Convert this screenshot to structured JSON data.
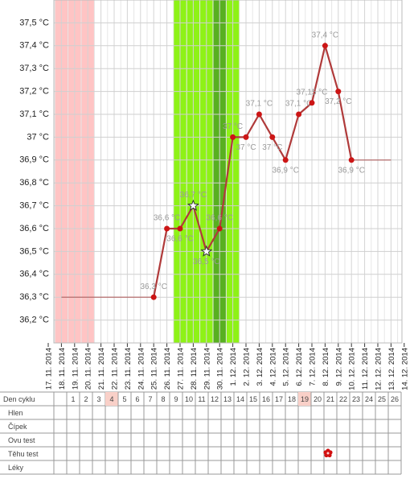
{
  "chart_data": {
    "type": "line",
    "categories": [
      "17. 11. 2014",
      "18. 11. 2014",
      "19. 11. 2014",
      "20. 11. 2014",
      "21. 11. 2014",
      "22. 11. 2014",
      "23. 11. 2014",
      "24. 11. 2014",
      "25. 11. 2014",
      "26. 11. 2014",
      "27. 11. 2014",
      "28. 11. 2014",
      "29. 11. 2014",
      "30. 11. 2014",
      "1. 12. 2014",
      "2. 12. 2014",
      "3. 12. 2014",
      "4. 12. 2014",
      "5. 12. 2014",
      "6. 12. 2014",
      "7. 12. 2014",
      "8. 12. 2014",
      "9. 12. 2014",
      "10. 12. 2014",
      "11. 12. 2014",
      "12. 12. 2014",
      "13. 12. 2014",
      "14. 12. 2014"
    ],
    "series": [
      {
        "color": "#b03a3a",
        "marker_color": "#cc1515",
        "values": [
          null,
          null,
          null,
          null,
          null,
          null,
          null,
          null,
          36.3,
          36.6,
          36.6,
          36.7,
          36.5,
          36.6,
          37.0,
          37.0,
          37.1,
          37.0,
          36.9,
          37.1,
          37.15,
          37.4,
          37.2,
          36.9,
          null,
          null,
          null,
          null
        ],
        "value_labels": [
          null,
          null,
          null,
          null,
          null,
          null,
          null,
          null,
          "36,3 °C",
          "36,6 °C",
          "36,6 °C",
          "36,7 °C",
          "36,5 °C",
          "36,6 °C",
          "37 °C",
          "37 °C",
          "37,1 °C",
          "37 °C",
          "36,9 °C",
          "37,1 °C",
          "37,15 °C",
          "37,4 °C",
          "37,2 °C",
          "36,9 °C",
          null,
          null,
          null,
          null
        ],
        "markers": [
          null,
          null,
          null,
          null,
          null,
          null,
          null,
          null,
          "circle",
          "circle",
          "circle",
          "star",
          "star",
          "circle",
          "circle",
          "circle",
          "circle",
          "circle",
          "circle",
          "circle",
          "circle",
          "circle",
          "circle",
          "circle",
          null,
          null,
          null,
          null
        ]
      },
      {
        "color": "#b06060",
        "values": [
          null,
          36.3,
          36.3,
          36.3,
          36.3,
          36.3,
          36.3,
          36.3,
          36.3,
          null,
          null,
          null,
          null,
          null,
          null,
          null,
          null,
          null,
          null,
          null,
          null,
          null,
          null,
          null,
          null,
          null,
          null,
          null
        ]
      },
      {
        "color": "#b06060",
        "values": [
          null,
          null,
          null,
          null,
          null,
          null,
          null,
          null,
          null,
          null,
          null,
          null,
          null,
          null,
          null,
          null,
          null,
          null,
          null,
          null,
          null,
          null,
          null,
          36.9,
          36.9,
          36.9,
          36.9,
          null
        ]
      }
    ],
    "bands": [
      {
        "from": "18. 11. 2014",
        "to": "20. 11. 2014",
        "color": "#ffc4c4"
      },
      {
        "from": "27. 11. 2014",
        "to": "1. 12. 2014",
        "color": "#8ef216"
      },
      {
        "from": "30. 11. 2014",
        "to": "30. 11. 2014",
        "color": "#58b020"
      }
    ],
    "ylim": [
      36.1,
      37.6
    ],
    "yticks": [
      {
        "value": 36.2,
        "label": "36,2 °C"
      },
      {
        "value": 36.3,
        "label": "36,3 °C"
      },
      {
        "value": 36.4,
        "label": "36,4 °C"
      },
      {
        "value": 36.5,
        "label": "36,5 °C"
      },
      {
        "value": 36.6,
        "label": "36,6 °C"
      },
      {
        "value": 36.7,
        "label": "36,7 °C"
      },
      {
        "value": 36.8,
        "label": "36,8 °C"
      },
      {
        "value": 36.9,
        "label": "36,9 °C"
      },
      {
        "value": 37,
        "label": "37 °C"
      },
      {
        "value": 37.1,
        "label": "37,1 °C"
      },
      {
        "value": 37.2,
        "label": "37,2 °C"
      },
      {
        "value": 37.3,
        "label": "37,3 °C"
      },
      {
        "value": 37.4,
        "label": "37,4 °C"
      },
      {
        "value": 37.5,
        "label": "37,5 °C"
      }
    ],
    "grid": true
  },
  "table": {
    "header": "Den cyklu",
    "days": [
      null,
      1,
      2,
      3,
      4,
      5,
      6,
      7,
      8,
      9,
      10,
      11,
      12,
      13,
      14,
      15,
      16,
      17,
      18,
      19,
      20,
      21,
      22,
      23,
      24,
      25,
      26
    ],
    "day_highlight": [
      false,
      false,
      false,
      false,
      true,
      false,
      false,
      false,
      false,
      false,
      false,
      false,
      false,
      false,
      false,
      false,
      false,
      false,
      false,
      true,
      false,
      false,
      false,
      false,
      false,
      false,
      false
    ],
    "rows": [
      "Hlen",
      "Čípek",
      "Ovu test",
      "Těhu test",
      "Léky"
    ]
  }
}
